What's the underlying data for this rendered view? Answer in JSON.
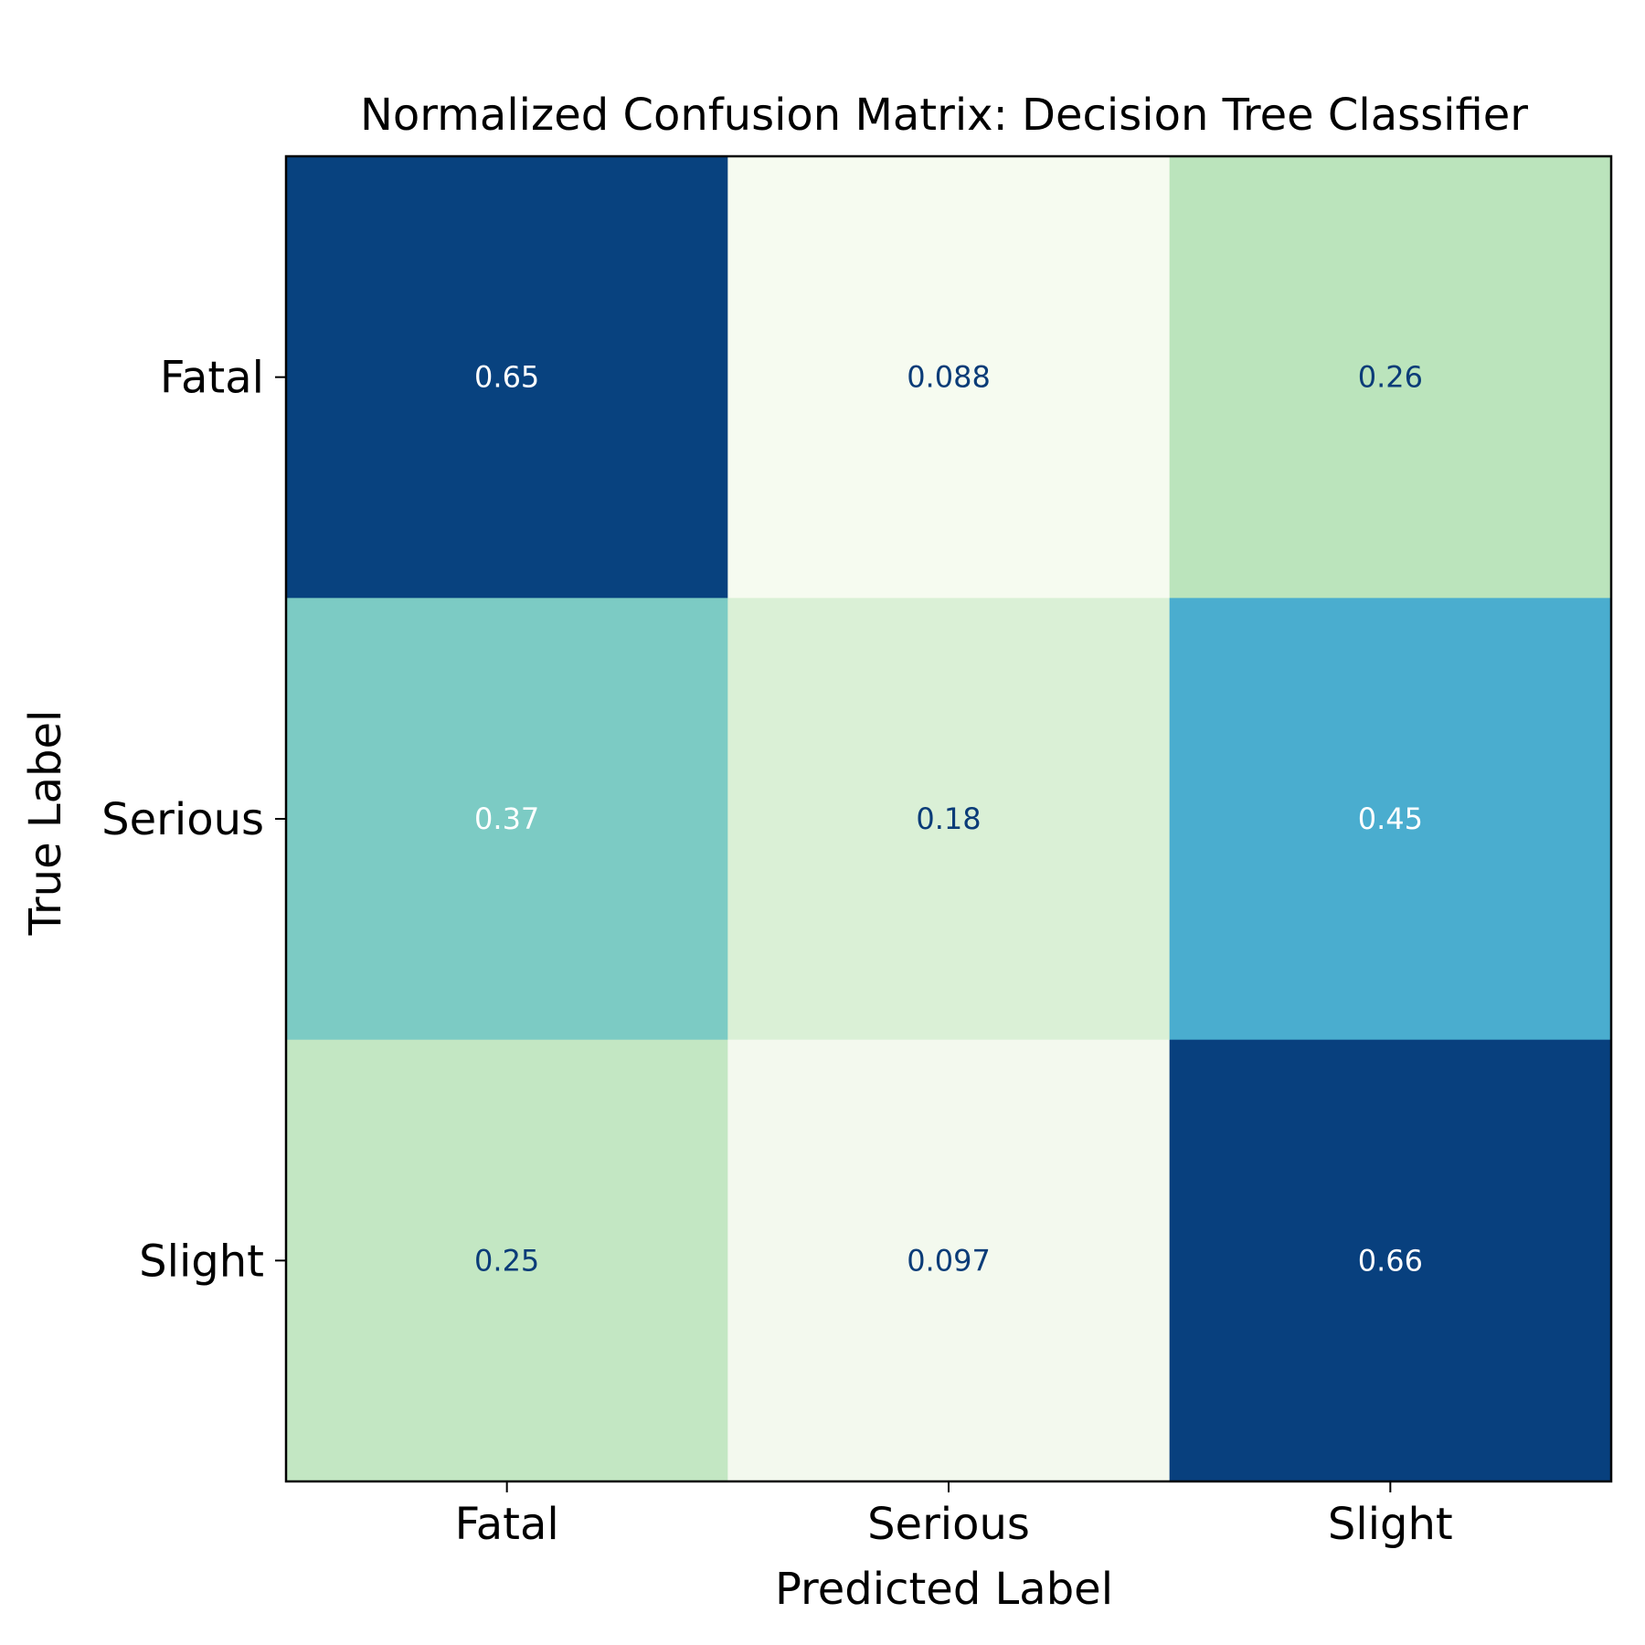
{
  "chart_data": {
    "type": "heatmap",
    "title": "Normalized Confusion Matrix: Decision Tree Classifier",
    "xlabel": "Predicted Label",
    "ylabel": "True Label",
    "x_categories": [
      "Fatal",
      "Serious",
      "Slight"
    ],
    "y_categories": [
      "Fatal",
      "Serious",
      "Slight"
    ],
    "values": [
      [
        0.65,
        0.088,
        0.26
      ],
      [
        0.37,
        0.18,
        0.45
      ],
      [
        0.25,
        0.097,
        0.66
      ]
    ],
    "cell_colors": [
      [
        "#08427f",
        "#f6fbf0",
        "#bbe4bc"
      ],
      [
        "#7ccbc4",
        "#daf0d6",
        "#4aadcf"
      ],
      [
        "#c3e7c3",
        "#f3f9ee",
        "#08407e"
      ]
    ],
    "text_colors": [
      [
        "#ffffff",
        "#0b3c78",
        "#0b3c78"
      ],
      [
        "#ffffff",
        "#0b3c78",
        "#ffffff"
      ],
      [
        "#0b3c78",
        "#0b3c78",
        "#ffffff"
      ]
    ],
    "colormap": "GnBu",
    "colorbar": false,
    "grid": false
  }
}
